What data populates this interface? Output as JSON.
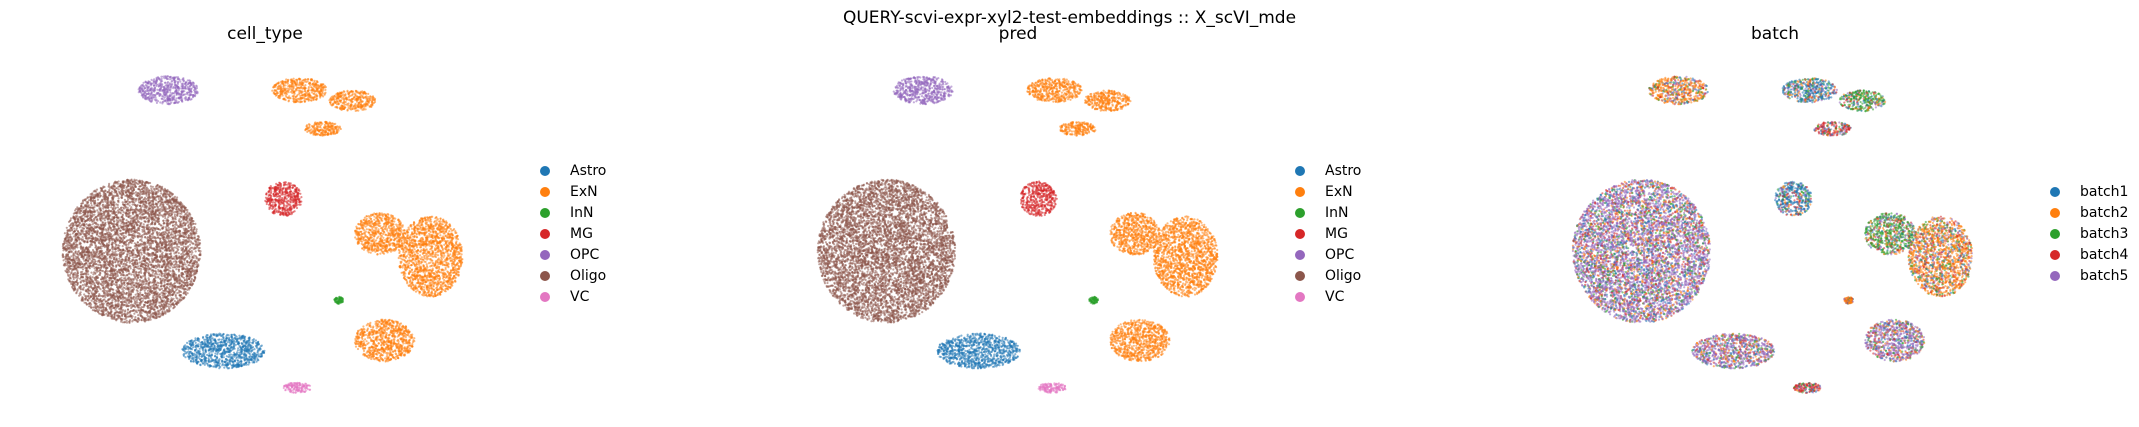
{
  "figure": {
    "suptitle": "QUERY-scvi-expr-xyl2-test-embeddings :: X_scVI_mde"
  },
  "palettes": {
    "cell_type": {
      "Astro": "#1f77b4",
      "ExN": "#ff7f0e",
      "InN": "#2ca02c",
      "MG": "#d62728",
      "OPC": "#9467bd",
      "Oligo": "#8c564b",
      "VC": "#e377c2"
    },
    "batch": {
      "batch1": "#1f77b4",
      "batch2": "#ff7f0e",
      "batch3": "#2ca02c",
      "batch4": "#d62728",
      "batch5": "#9467bd"
    }
  },
  "chart_data": [
    {
      "type": "scatter",
      "title": "cell_type",
      "color_by": "cell_type",
      "legend": [
        "Astro",
        "ExN",
        "InN",
        "MG",
        "OPC",
        "Oligo",
        "VC"
      ],
      "clusters": [
        {
          "label": "Oligo",
          "cx": -0.58,
          "cy": 0.15,
          "rx": 0.3,
          "ry": 0.41
        },
        {
          "label": "OPC",
          "cx": -0.42,
          "cy": -0.77,
          "rx": 0.13,
          "ry": 0.08
        },
        {
          "label": "ExN",
          "cx": 0.15,
          "cy": -0.77,
          "rx": 0.12,
          "ry": 0.07
        },
        {
          "label": "ExN",
          "cx": 0.38,
          "cy": -0.71,
          "rx": 0.1,
          "ry": 0.06
        },
        {
          "label": "ExN",
          "cx": 0.25,
          "cy": -0.55,
          "rx": 0.08,
          "ry": 0.04
        },
        {
          "label": "ExN",
          "cx": 0.72,
          "cy": 0.18,
          "rx": 0.14,
          "ry": 0.23
        },
        {
          "label": "ExN",
          "cx": 0.5,
          "cy": 0.05,
          "rx": 0.11,
          "ry": 0.12
        },
        {
          "label": "ExN",
          "cx": 0.52,
          "cy": 0.66,
          "rx": 0.13,
          "ry": 0.12
        },
        {
          "label": "MG",
          "cx": 0.08,
          "cy": -0.15,
          "rx": 0.08,
          "ry": 0.1
        },
        {
          "label": "Astro",
          "cx": -0.18,
          "cy": 0.72,
          "rx": 0.18,
          "ry": 0.1
        },
        {
          "label": "VC",
          "cx": 0.14,
          "cy": 0.93,
          "rx": 0.06,
          "ry": 0.03
        },
        {
          "label": "InN",
          "cx": 0.32,
          "cy": 0.43,
          "rx": 0.02,
          "ry": 0.02
        }
      ]
    },
    {
      "type": "scatter",
      "title": "pred",
      "color_by": "cell_type",
      "legend": [
        "Astro",
        "ExN",
        "InN",
        "MG",
        "OPC",
        "Oligo",
        "VC"
      ],
      "clusters": [
        {
          "label": "Oligo",
          "cx": -0.58,
          "cy": 0.15,
          "rx": 0.3,
          "ry": 0.41
        },
        {
          "label": "OPC",
          "cx": -0.42,
          "cy": -0.77,
          "rx": 0.13,
          "ry": 0.08
        },
        {
          "label": "ExN",
          "cx": 0.15,
          "cy": -0.77,
          "rx": 0.12,
          "ry": 0.07
        },
        {
          "label": "ExN",
          "cx": 0.38,
          "cy": -0.71,
          "rx": 0.1,
          "ry": 0.06
        },
        {
          "label": "ExN",
          "cx": 0.25,
          "cy": -0.55,
          "rx": 0.08,
          "ry": 0.04
        },
        {
          "label": "ExN",
          "cx": 0.72,
          "cy": 0.18,
          "rx": 0.14,
          "ry": 0.23
        },
        {
          "label": "ExN",
          "cx": 0.5,
          "cy": 0.05,
          "rx": 0.11,
          "ry": 0.12
        },
        {
          "label": "ExN",
          "cx": 0.52,
          "cy": 0.66,
          "rx": 0.13,
          "ry": 0.12
        },
        {
          "label": "MG",
          "cx": 0.08,
          "cy": -0.15,
          "rx": 0.08,
          "ry": 0.1
        },
        {
          "label": "Astro",
          "cx": -0.18,
          "cy": 0.72,
          "rx": 0.18,
          "ry": 0.1
        },
        {
          "label": "VC",
          "cx": 0.14,
          "cy": 0.93,
          "rx": 0.06,
          "ry": 0.03
        },
        {
          "label": "InN",
          "cx": 0.32,
          "cy": 0.43,
          "rx": 0.02,
          "ry": 0.02
        }
      ]
    },
    {
      "type": "scatter",
      "title": "batch",
      "color_by": "batch",
      "legend": [
        "batch1",
        "batch2",
        "batch3",
        "batch4",
        "batch5"
      ],
      "clusters": [
        {
          "label": "batch5",
          "cx": -0.58,
          "cy": 0.15,
          "rx": 0.3,
          "ry": 0.41
        },
        {
          "label": "batch2",
          "cx": -0.42,
          "cy": -0.77,
          "rx": 0.13,
          "ry": 0.08
        },
        {
          "label": "batch1",
          "cx": 0.15,
          "cy": -0.77,
          "rx": 0.12,
          "ry": 0.07
        },
        {
          "label": "batch3",
          "cx": 0.38,
          "cy": -0.71,
          "rx": 0.1,
          "ry": 0.06
        },
        {
          "label": "batch4",
          "cx": 0.25,
          "cy": -0.55,
          "rx": 0.08,
          "ry": 0.04
        },
        {
          "label": "batch2",
          "cx": 0.72,
          "cy": 0.18,
          "rx": 0.14,
          "ry": 0.23
        },
        {
          "label": "batch3",
          "cx": 0.5,
          "cy": 0.05,
          "rx": 0.11,
          "ry": 0.12
        },
        {
          "label": "batch5",
          "cx": 0.52,
          "cy": 0.66,
          "rx": 0.13,
          "ry": 0.12
        },
        {
          "label": "batch1",
          "cx": 0.08,
          "cy": -0.15,
          "rx": 0.08,
          "ry": 0.1
        },
        {
          "label": "batch5",
          "cx": -0.18,
          "cy": 0.72,
          "rx": 0.18,
          "ry": 0.1
        },
        {
          "label": "batch4",
          "cx": 0.14,
          "cy": 0.93,
          "rx": 0.06,
          "ry": 0.03
        },
        {
          "label": "batch2",
          "cx": 0.32,
          "cy": 0.43,
          "rx": 0.02,
          "ry": 0.02
        }
      ]
    }
  ]
}
